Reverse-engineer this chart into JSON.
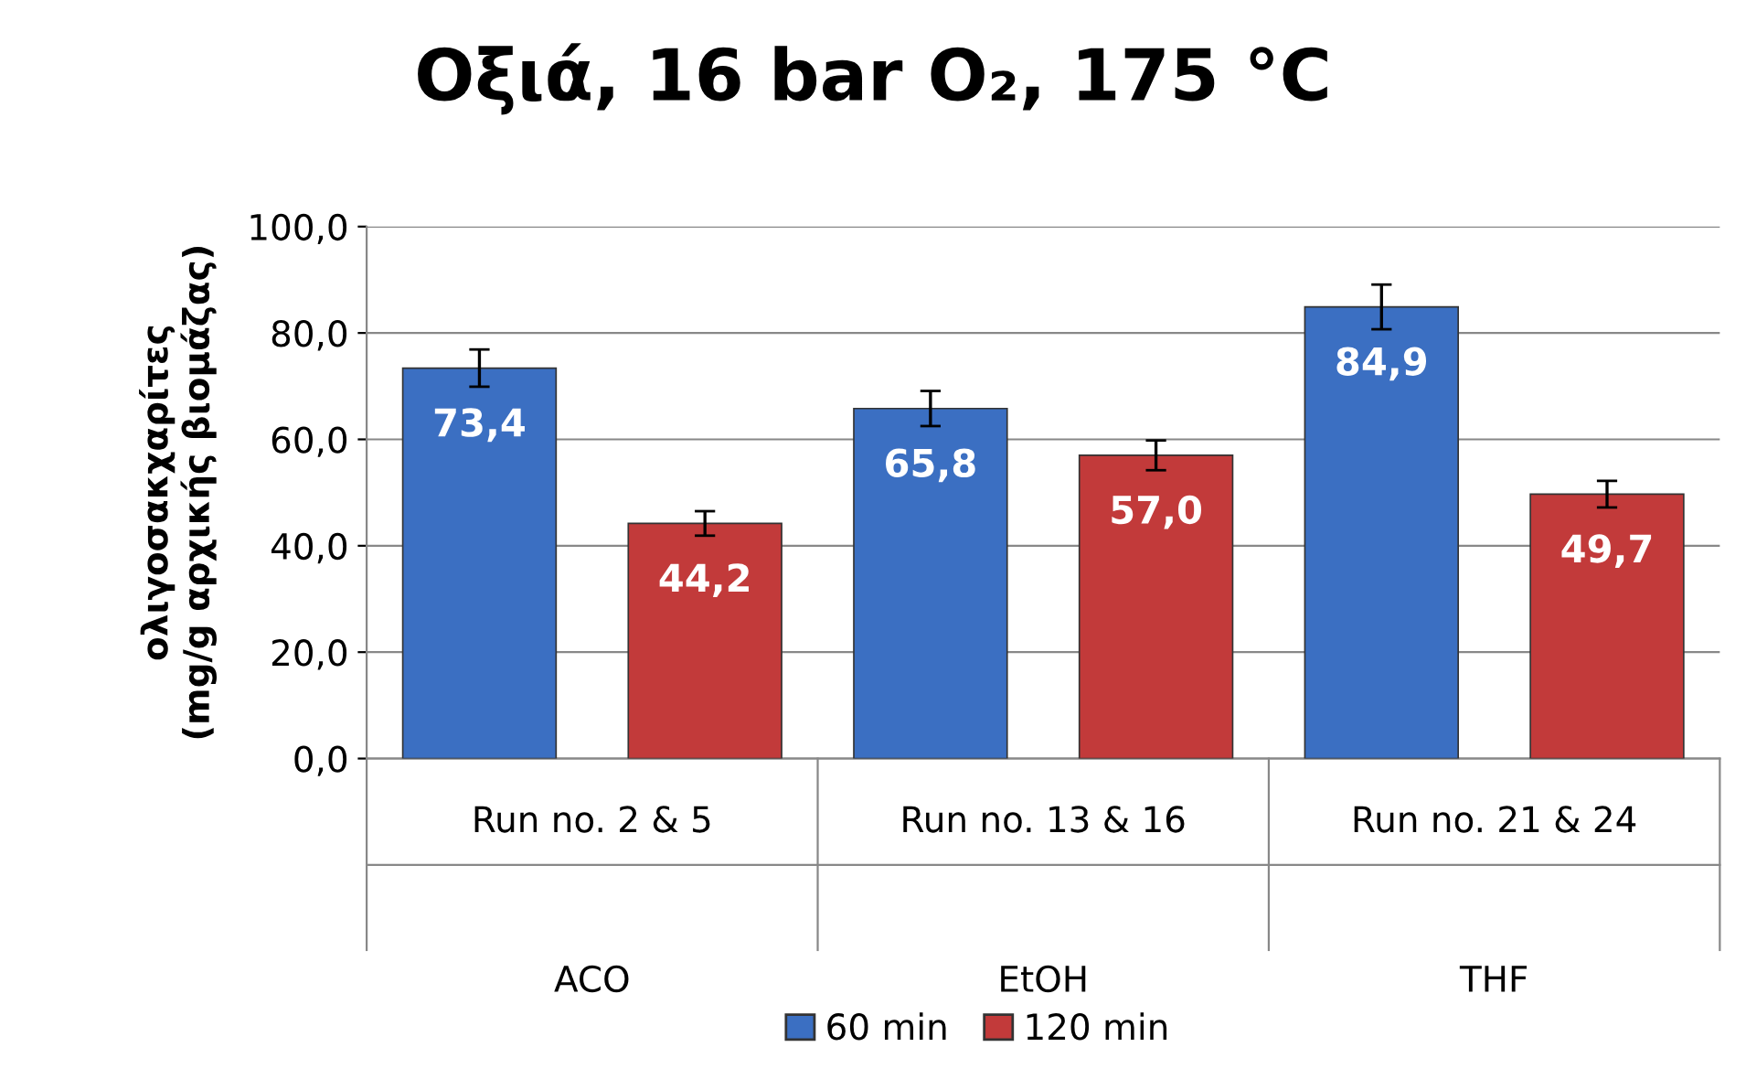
{
  "chart_data": {
    "type": "bar",
    "title": "Οξιά, 16 bar O₂, 175 °C",
    "ylabel": "ολιγοσακχαρίτες\n(mg/g αρχικής βιομάζας)",
    "categories": [
      "Run no. 2 & 5\nACO",
      "Run no. 13 & 16\nEtOH",
      "Run no. 21 & 24\nTHF"
    ],
    "series": [
      {
        "name": "60 min",
        "color": "#3b6fc2",
        "values": [
          73.4,
          65.8,
          84.9
        ],
        "errors": [
          3.5,
          3.3,
          4.2
        ],
        "value_labels": [
          "73,4",
          "65,8",
          "84,9"
        ]
      },
      {
        "name": "120 min",
        "color": "#c23a3a",
        "values": [
          44.2,
          57.0,
          49.7
        ],
        "errors": [
          2.3,
          2.8,
          2.5
        ],
        "value_labels": [
          "44,2",
          "57,0",
          "49,7"
        ]
      }
    ],
    "ylim": [
      0,
      100
    ],
    "yticks": [
      {
        "value": 0,
        "label": "0,0"
      },
      {
        "value": 20,
        "label": "20,0"
      },
      {
        "value": 40,
        "label": "40,0"
      },
      {
        "value": 60,
        "label": "60,0"
      },
      {
        "value": 80,
        "label": "80,0"
      },
      {
        "value": 100,
        "label": "100,0"
      }
    ],
    "grid": "y",
    "legend": "bottom"
  }
}
